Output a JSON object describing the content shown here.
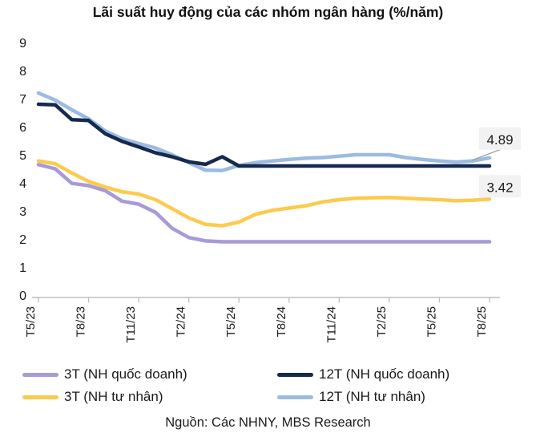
{
  "title": "Lãi suất huy động của các nhóm ngân hàng (%/năm)",
  "source": "Nguồn: Các NHNY, MBS Research",
  "colors": {
    "purple": "#a89ad8",
    "navy": "#16294e",
    "yellow": "#fcca4e",
    "lightblue": "#9cbbe2",
    "axis": "#bfbfbf",
    "text": "#1a1a1a",
    "annotation_bg": "#f2f2f2",
    "leader_line": "#a0a0a0"
  },
  "chart_data": {
    "type": "line",
    "title": "Lãi suất huy động của các nhóm ngân hàng (%/năm)",
    "xlabel": "",
    "ylabel": "",
    "ylim": [
      0,
      9
    ],
    "yticks": [
      0,
      1,
      2,
      3,
      4,
      5,
      6,
      7,
      8,
      9
    ],
    "grid": false,
    "legend_position": "bottom",
    "x": [
      "T5/23",
      "T6/23",
      "T7/23",
      "T8/23",
      "T9/23",
      "T10/23",
      "T11/23",
      "T12/23",
      "T1/24",
      "T2/24",
      "T3/24",
      "T4/24",
      "T5/24",
      "T6/24",
      "T7/24",
      "T8/24",
      "T9/24",
      "T10/24",
      "T11/24",
      "T12/24",
      "T1/25",
      "T2/25",
      "T3/25",
      "T4/25",
      "T5/25",
      "T6/25",
      "T7/25",
      "T8/25"
    ],
    "x_tick_labels": [
      "T5/23",
      "T8/23",
      "T11/23",
      "T2/24",
      "T5/24",
      "T8/24",
      "T11/24",
      "T2/25",
      "T5/25",
      "T8/25"
    ],
    "x_tick_every": 3,
    "series": [
      {
        "name": "3T (NH quốc doanh)",
        "color": "#a89ad8",
        "values": [
          4.65,
          4.5,
          3.98,
          3.9,
          3.72,
          3.35,
          3.24,
          2.95,
          2.38,
          2.05,
          1.93,
          1.9,
          1.9,
          1.9,
          1.9,
          1.9,
          1.9,
          1.9,
          1.9,
          1.9,
          1.9,
          1.9,
          1.9,
          1.9,
          1.9,
          1.9,
          1.9,
          1.9
        ]
      },
      {
        "name": "12T (NH quốc doanh)",
        "color": "#16294e",
        "values": [
          6.8,
          6.78,
          6.25,
          6.22,
          5.75,
          5.48,
          5.28,
          5.07,
          4.93,
          4.75,
          4.66,
          4.93,
          4.6,
          4.6,
          4.6,
          4.6,
          4.6,
          4.6,
          4.6,
          4.6,
          4.6,
          4.6,
          4.6,
          4.6,
          4.6,
          4.6,
          4.6,
          4.6
        ]
      },
      {
        "name": "3T (NH tư nhân)",
        "color": "#fcca4e",
        "values": [
          4.78,
          4.68,
          4.35,
          4.05,
          3.85,
          3.68,
          3.6,
          3.4,
          3.08,
          2.75,
          2.52,
          2.47,
          2.6,
          2.88,
          3.02,
          3.1,
          3.18,
          3.32,
          3.4,
          3.45,
          3.47,
          3.48,
          3.45,
          3.42,
          3.4,
          3.36,
          3.38,
          3.42
        ]
      },
      {
        "name": "12T (NH tư nhân)",
        "color": "#9cbbe2",
        "values": [
          7.2,
          6.95,
          6.6,
          6.28,
          5.85,
          5.57,
          5.4,
          5.24,
          5.0,
          4.72,
          4.45,
          4.44,
          4.62,
          4.72,
          4.78,
          4.83,
          4.88,
          4.9,
          4.95,
          5.0,
          5.0,
          5.0,
          4.9,
          4.83,
          4.78,
          4.74,
          4.78,
          4.89
        ]
      }
    ],
    "annotations": [
      {
        "text": "4.89",
        "series": "12T (NH tư nhân)"
      },
      {
        "text": "3.42",
        "series": "3T (NH tư nhân)"
      }
    ]
  },
  "legend": {
    "items": [
      {
        "label": "3T (NH quốc doanh)"
      },
      {
        "label": "12T (NH quốc doanh)"
      },
      {
        "label": "3T (NH tư nhân)"
      },
      {
        "label": "12T (NH tư nhân)"
      }
    ]
  }
}
